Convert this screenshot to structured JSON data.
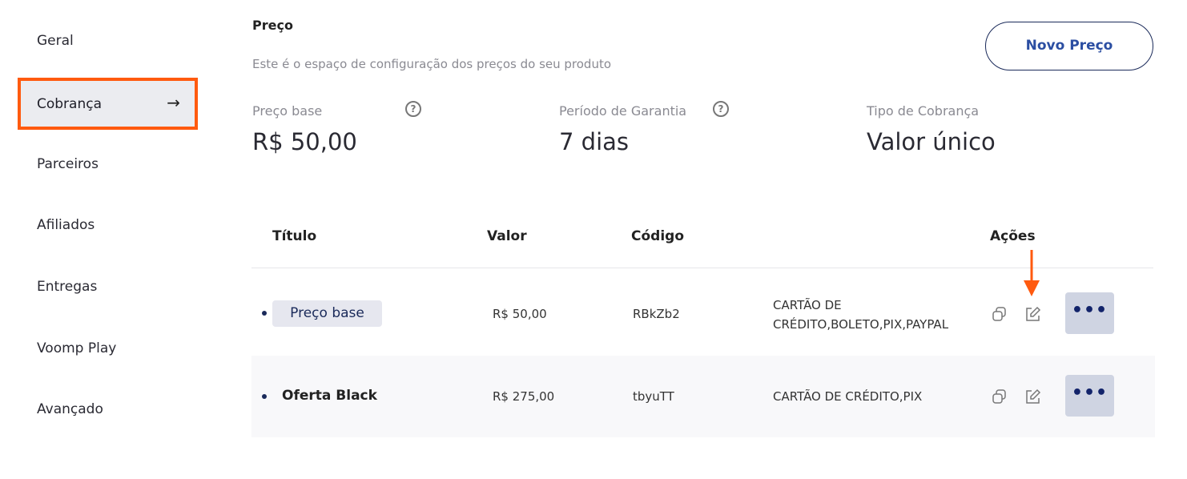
{
  "sidebar": {
    "items": [
      {
        "label": "Geral"
      },
      {
        "label": "Cobrança",
        "active": true,
        "arrow": "→"
      },
      {
        "label": "Parceiros"
      },
      {
        "label": "Afiliados"
      },
      {
        "label": "Entregas"
      },
      {
        "label": "Voomp Play"
      },
      {
        "label": "Avançado"
      }
    ]
  },
  "header": {
    "title": "Preço",
    "subtitle": "Este é o espaço de configuração dos preços do seu produto",
    "new_button": "Novo Preço"
  },
  "summary": [
    {
      "label": "Preço base",
      "value": "R$ 50,00",
      "help": "?"
    },
    {
      "label": "Período de Garantia",
      "value": "7 dias",
      "help": "?"
    },
    {
      "label": "Tipo de Cobrança",
      "value": "Valor único"
    }
  ],
  "table": {
    "headers": [
      "Título",
      "Valor",
      "Código",
      "Ações"
    ],
    "rows": [
      {
        "title": "Preço base",
        "value": "R$ 50,00",
        "code": "RBkZb2",
        "methods": "CARTÃO DE CRÉDITO,BOLETO,PIX,PAYPAL",
        "more": "•••"
      },
      {
        "title": "Oferta Black",
        "value": "R$ 275,00",
        "code": "tbyuTT",
        "methods": "CARTÃO DE CRÉDITO,PIX",
        "more": "•••"
      }
    ]
  },
  "colors": {
    "highlight": "#ff5a0f",
    "accent": "#2b4ea2"
  }
}
